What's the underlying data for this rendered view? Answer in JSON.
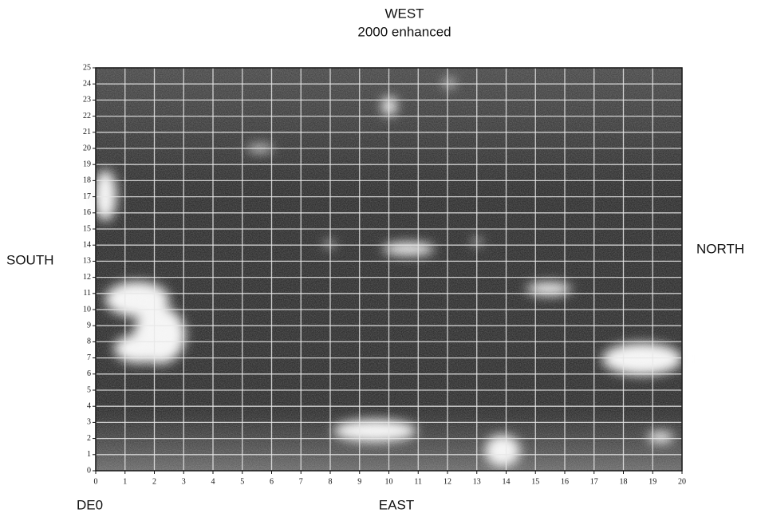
{
  "chart_data": {
    "type": "grid",
    "title": "WEST",
    "subtitle": "2000 enhanced",
    "left_label": "SOUTH",
    "right_label": "NORTH",
    "bottom_label": "EAST",
    "corner_label": "DE0",
    "xlim": [
      0,
      20
    ],
    "ylim": [
      0,
      25
    ],
    "xticks": [
      0,
      1,
      2,
      3,
      4,
      5,
      6,
      7,
      8,
      9,
      10,
      11,
      12,
      13,
      14,
      15,
      16,
      17,
      18,
      19,
      20
    ],
    "yticks": [
      0,
      1,
      2,
      3,
      4,
      5,
      6,
      7,
      8,
      9,
      10,
      11,
      12,
      13,
      14,
      15,
      16,
      17,
      18,
      19,
      20,
      21,
      22,
      23,
      24,
      25
    ],
    "grid": true
  }
}
